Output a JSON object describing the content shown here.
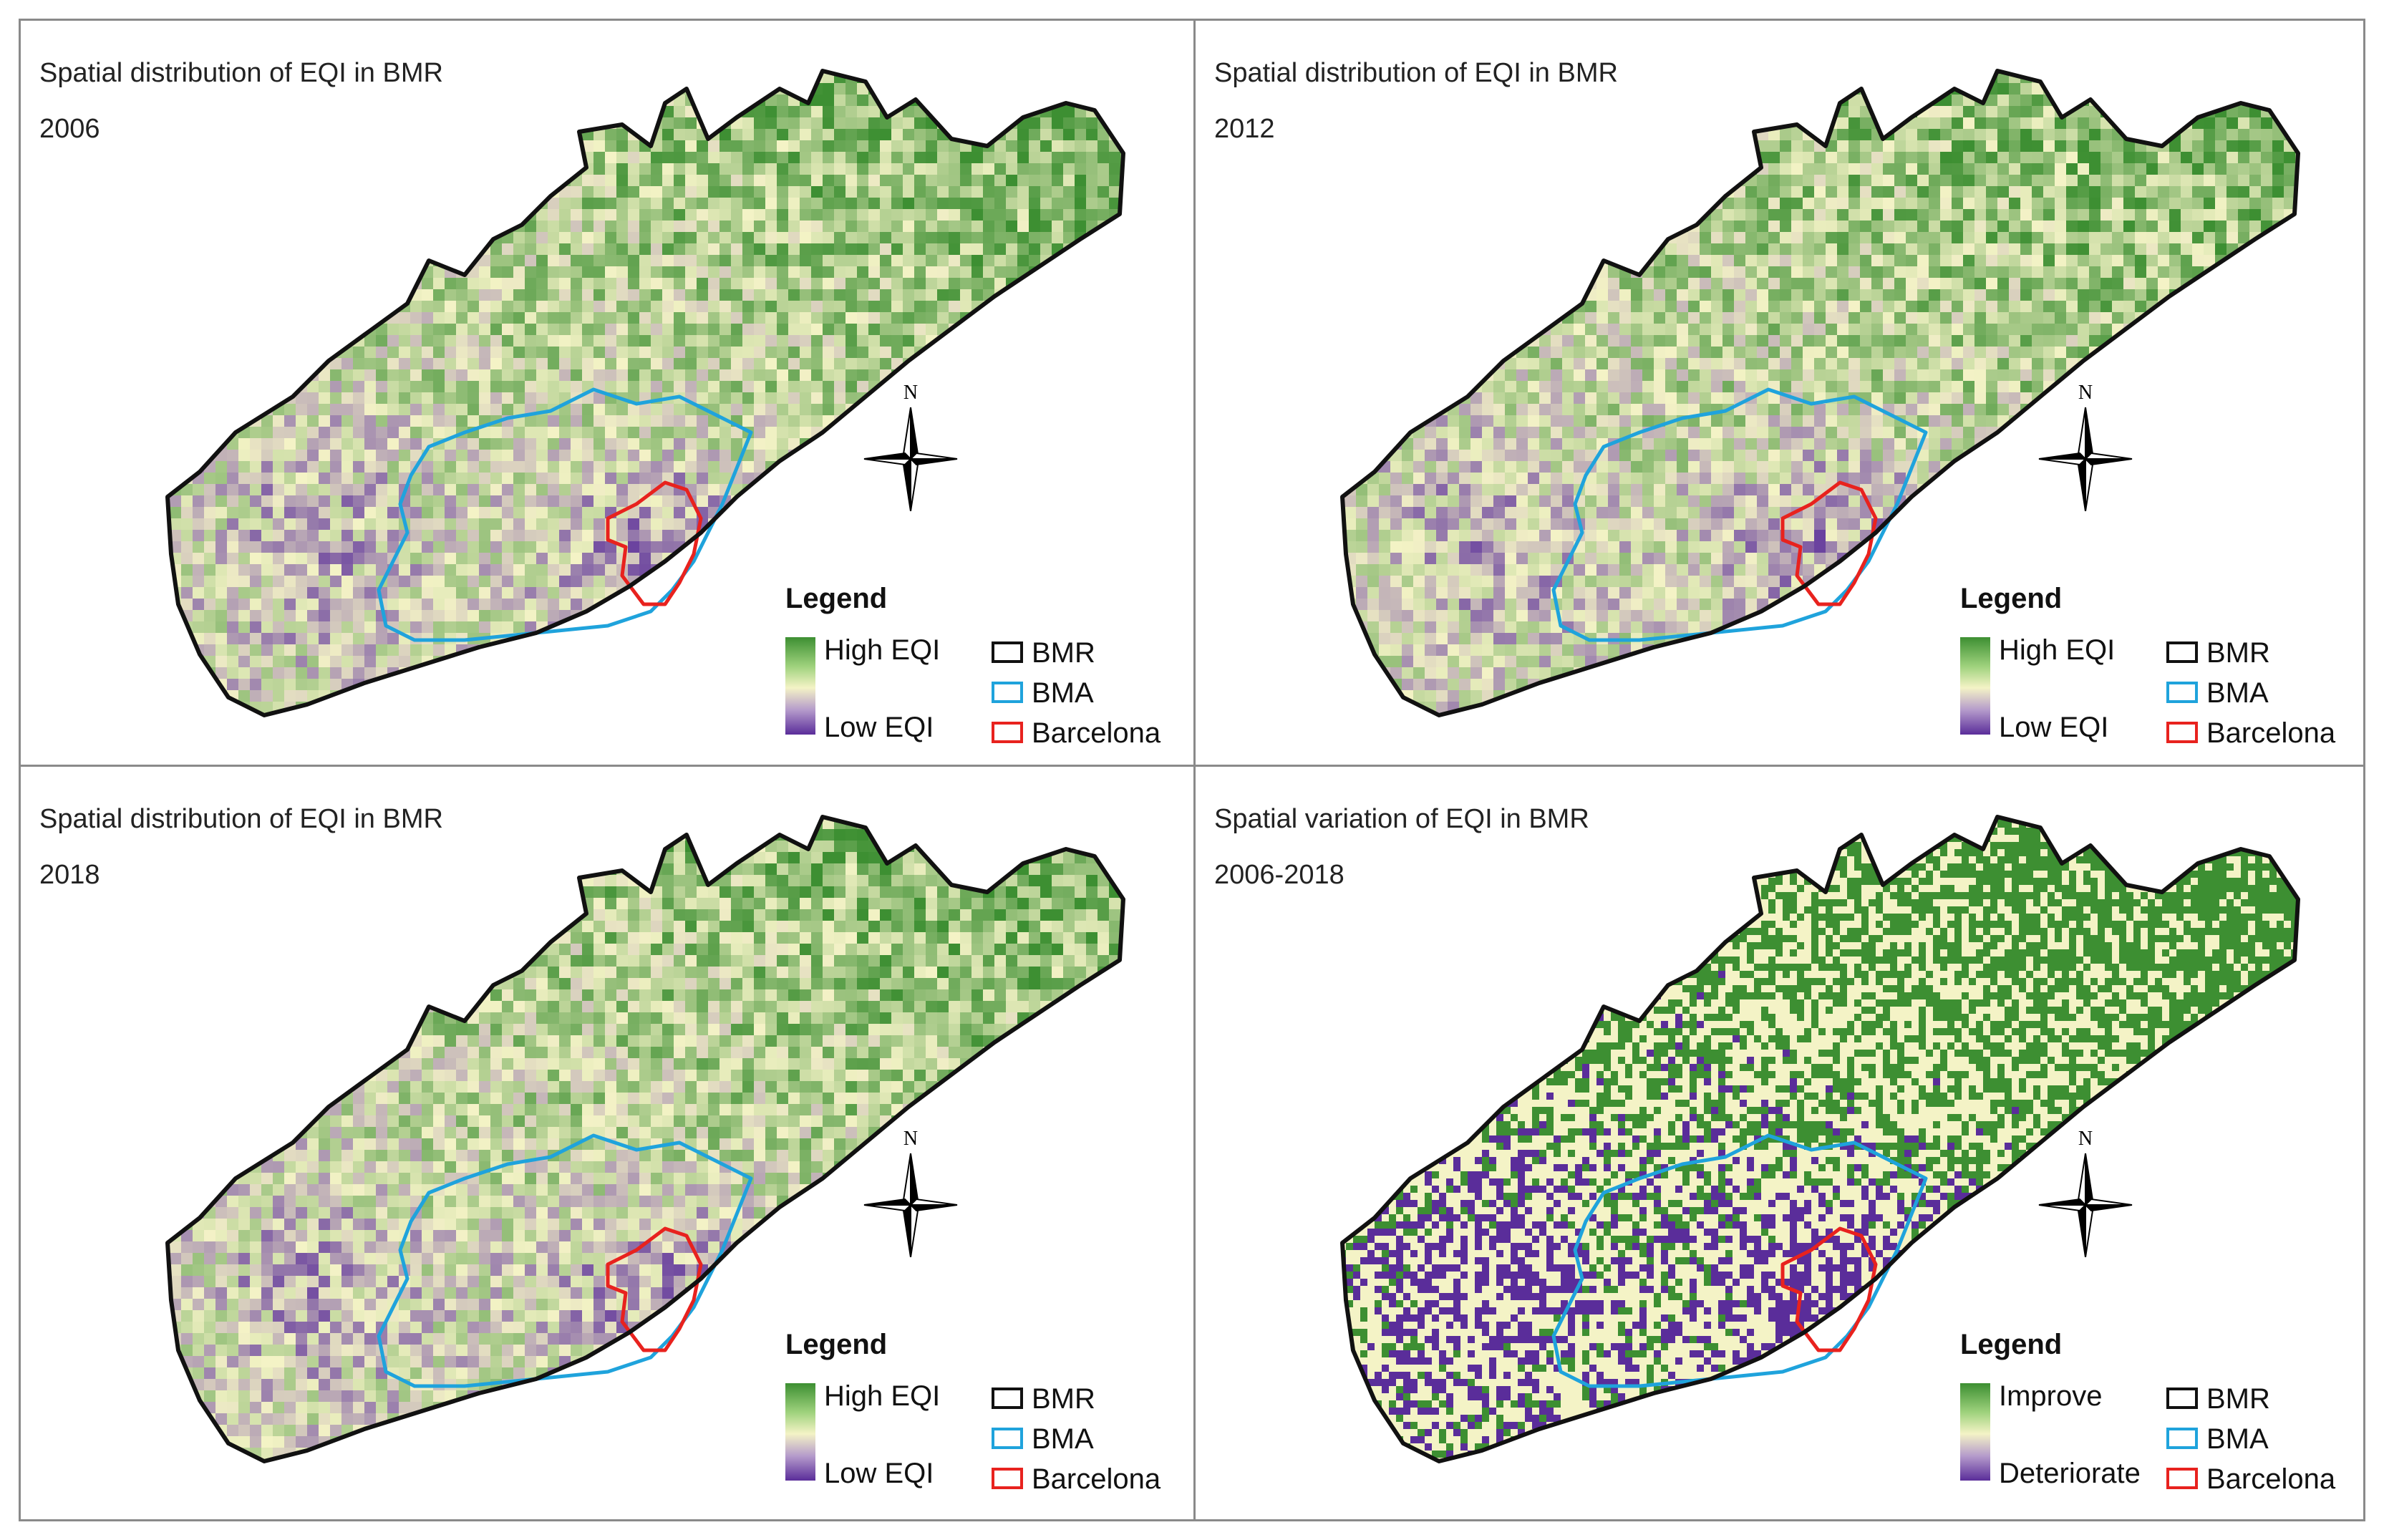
{
  "colors": {
    "high": "#3d8f32",
    "mid": "#f4f3c6",
    "low": "#5a2d9a",
    "bmr_outline": "#111111",
    "bma_outline": "#1fa3dc",
    "barcelona_outline": "#e8221e"
  },
  "panels": [
    {
      "title": "Spatial distribution of EQI in BMR",
      "period": "2006",
      "legend": {
        "title": "Legend",
        "ramp_high": "High EQI",
        "ramp_low": "Low EQI",
        "bmr": "BMR",
        "bma": "BMA",
        "barcelona": "Barcelona"
      },
      "compass_letter": "N"
    },
    {
      "title": "Spatial distribution of EQI in BMR",
      "period": "2012",
      "legend": {
        "title": "Legend",
        "ramp_high": "High EQI",
        "ramp_low": "Low EQI",
        "bmr": "BMR",
        "bma": "BMA",
        "barcelona": "Barcelona"
      },
      "compass_letter": "N"
    },
    {
      "title": "Spatial distribution of EQI in BMR",
      "period": "2018",
      "legend": {
        "title": "Legend",
        "ramp_high": "High EQI",
        "ramp_low": "Low EQI",
        "bmr": "BMR",
        "bma": "BMA",
        "barcelona": "Barcelona"
      },
      "compass_letter": "N"
    },
    {
      "title": "Spatial variation of EQI in BMR",
      "period": "2006-2018",
      "legend": {
        "title": "Legend",
        "ramp_high": "Improve",
        "ramp_low": "Deteriorate",
        "bmr": "BMR",
        "bma": "BMA",
        "barcelona": "Barcelona"
      },
      "compass_letter": "N"
    }
  ]
}
